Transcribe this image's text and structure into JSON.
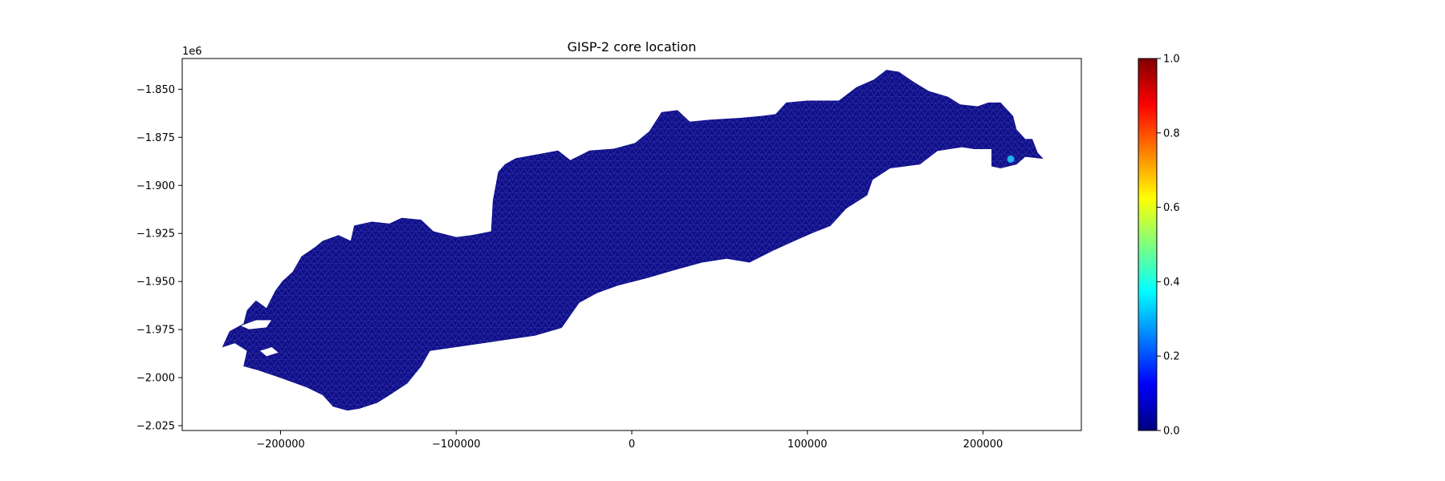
{
  "chart_data": {
    "type": "heatmap",
    "title": "GISP-2 core location",
    "xlabel": "",
    "ylabel": "",
    "y_offset_label": "1e6",
    "xlim": [
      -256000,
      256000
    ],
    "ylim": [
      -2027500,
      -1834000
    ],
    "x_ticks": [
      -200000,
      -100000,
      0,
      100000,
      200000
    ],
    "x_tick_labels": [
      "−200000",
      "−100000",
      "0",
      "100000",
      "200000"
    ],
    "y_ticks": [
      -1.85,
      -1.875,
      -1.9,
      -1.925,
      -1.95,
      -1.975,
      -2.0,
      -2.025
    ],
    "y_tick_labels": [
      "−1.850",
      "−1.875",
      "−1.900",
      "−1.925",
      "−1.950",
      "−1.975",
      "−2.000",
      "−2.025"
    ],
    "grid": false,
    "mesh": {
      "value": 0.0,
      "fill_color": "#10108a",
      "outline": [
        [
          -232000,
          -1982000
        ],
        [
          -229000,
          -1976000
        ],
        [
          -221000,
          -1972000
        ],
        [
          -219000,
          -1965000
        ],
        [
          -214000,
          -1960000
        ],
        [
          -208000,
          -1964000
        ],
        [
          -203000,
          -1955000
        ],
        [
          -199000,
          -1950000
        ],
        [
          -193000,
          -1945000
        ],
        [
          -188000,
          -1937000
        ],
        [
          -180000,
          -1932000
        ],
        [
          -176000,
          -1929000
        ],
        [
          -167000,
          -1926000
        ],
        [
          -160000,
          -1929000
        ],
        [
          -158000,
          -1921000
        ],
        [
          -148000,
          -1919000
        ],
        [
          -138000,
          -1920000
        ],
        [
          -131000,
          -1917000
        ],
        [
          -120000,
          -1918000
        ],
        [
          -113000,
          -1924000
        ],
        [
          -100000,
          -1927000
        ],
        [
          -91000,
          -1926000
        ],
        [
          -80000,
          -1924000
        ],
        [
          -79000,
          -1908000
        ],
        [
          -76000,
          -1893000
        ],
        [
          -72000,
          -1889000
        ],
        [
          -66000,
          -1886000
        ],
        [
          -54000,
          -1884000
        ],
        [
          -42000,
          -1882000
        ],
        [
          -35000,
          -1887000
        ],
        [
          -24000,
          -1882000
        ],
        [
          -10000,
          -1881000
        ],
        [
          2000,
          -1878000
        ],
        [
          10000,
          -1872000
        ],
        [
          17000,
          -1862000
        ],
        [
          26000,
          -1861000
        ],
        [
          33000,
          -1867000
        ],
        [
          44000,
          -1866000
        ],
        [
          62000,
          -1865000
        ],
        [
          74000,
          -1864000
        ],
        [
          82000,
          -1863000
        ],
        [
          88000,
          -1857000
        ],
        [
          100000,
          -1856000
        ],
        [
          118000,
          -1856000
        ],
        [
          128000,
          -1849000
        ],
        [
          138000,
          -1845000
        ],
        [
          145000,
          -1840000
        ],
        [
          152000,
          -1841000
        ],
        [
          160000,
          -1846000
        ],
        [
          169000,
          -1851000
        ],
        [
          180000,
          -1854000
        ],
        [
          187000,
          -1858000
        ],
        [
          197000,
          -1859000
        ],
        [
          203000,
          -1857000
        ],
        [
          210000,
          -1857000
        ],
        [
          217000,
          -1864000
        ],
        [
          219000,
          -1871000
        ],
        [
          224000,
          -1876000
        ],
        [
          228000,
          -1876000
        ],
        [
          231000,
          -1883000
        ],
        [
          234000,
          -1886000
        ],
        [
          224000,
          -1885000
        ],
        [
          219000,
          -1889000
        ],
        [
          210000,
          -1891000
        ],
        [
          205000,
          -1890000
        ],
        [
          205000,
          -1881000
        ],
        [
          195000,
          -1881000
        ],
        [
          188000,
          -1880000
        ],
        [
          174000,
          -1882000
        ],
        [
          164000,
          -1889000
        ],
        [
          147000,
          -1891000
        ],
        [
          137000,
          -1897000
        ],
        [
          134000,
          -1905000
        ],
        [
          122000,
          -1912000
        ],
        [
          113000,
          -1921000
        ],
        [
          102000,
          -1925000
        ],
        [
          92000,
          -1929000
        ],
        [
          80000,
          -1934000
        ],
        [
          67000,
          -1940000
        ],
        [
          54000,
          -1938000
        ],
        [
          40000,
          -1940000
        ],
        [
          24000,
          -1944000
        ],
        [
          9000,
          -1948000
        ],
        [
          -8000,
          -1952000
        ],
        [
          -20000,
          -1956000
        ],
        [
          -30000,
          -1961000
        ],
        [
          -40000,
          -1974000
        ],
        [
          -55000,
          -1978000
        ],
        [
          -70000,
          -1980000
        ],
        [
          -85000,
          -1982000
        ],
        [
          -100000,
          -1984000
        ],
        [
          -115000,
          -1986000
        ],
        [
          -120000,
          -1994000
        ],
        [
          -128000,
          -2003000
        ],
        [
          -138000,
          -2009000
        ],
        [
          -145000,
          -2013000
        ],
        [
          -155000,
          -2016000
        ],
        [
          -162000,
          -2017000
        ],
        [
          -170000,
          -2015000
        ],
        [
          -176000,
          -2009000
        ],
        [
          -185000,
          -2005000
        ],
        [
          -200000,
          -2000000
        ],
        [
          -213000,
          -1996000
        ],
        [
          -221000,
          -1994000
        ],
        [
          -219000,
          -1986000
        ],
        [
          -226000,
          -1982000
        ],
        [
          -233000,
          -1984000
        ]
      ],
      "holes": [
        [
          [
            -223000,
            -1973000
          ],
          [
            -214000,
            -1970000
          ],
          [
            -205000,
            -1970000
          ],
          [
            -208000,
            -1974000
          ],
          [
            -218000,
            -1975000
          ]
        ],
        [
          [
            -212000,
            -1986000
          ],
          [
            -205000,
            -1984000
          ],
          [
            -201000,
            -1987000
          ],
          [
            -208000,
            -1989000
          ]
        ]
      ]
    },
    "highlight": {
      "value": 0.3,
      "color": "#1fb3f0",
      "x": 215800,
      "y": -1886300
    },
    "colorbar": {
      "colormap": "jet",
      "range": [
        0.0,
        1.0
      ],
      "ticks": [
        0.0,
        0.2,
        0.4,
        0.6,
        0.8,
        1.0
      ],
      "tick_labels": [
        "0.0",
        "0.2",
        "0.4",
        "0.6",
        "0.8",
        "1.0"
      ],
      "colors": [
        "#00007f",
        "#0000ff",
        "#007fff",
        "#00ffff",
        "#7fff7f",
        "#ffff00",
        "#ff7f00",
        "#ff0000",
        "#7f0000"
      ]
    }
  }
}
